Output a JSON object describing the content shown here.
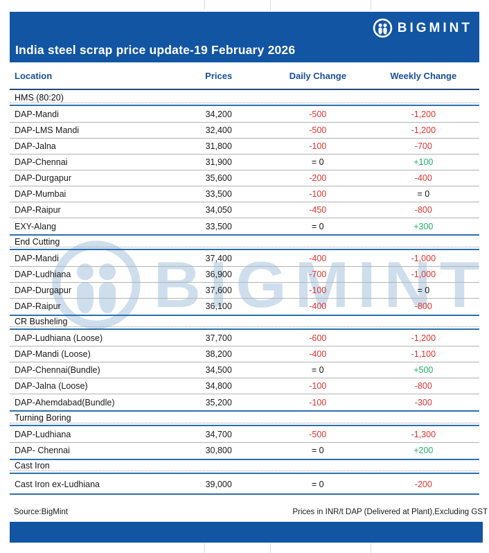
{
  "header": {
    "title": "India steel scrap price update-19 February 2026",
    "brand": "BIGMINT"
  },
  "columns": {
    "location": "Location",
    "prices": "Prices",
    "daily": "Daily Change",
    "weekly": "Weekly Change"
  },
  "table": {
    "sections": [
      {
        "name": "HMS (80:20)",
        "rows": [
          {
            "location": "DAP-Mandi",
            "price": "34,200",
            "daily": "-500",
            "weekly": "-1,200"
          },
          {
            "location": "DAP-LMS Mandi",
            "price": "32,400",
            "daily": "-500",
            "weekly": "-1,200"
          },
          {
            "location": "DAP-Jalna",
            "price": "31,800",
            "daily": "-100",
            "weekly": "-700"
          },
          {
            "location": "DAP-Chennai",
            "price": "31,900",
            "daily": "= 0",
            "weekly": "+100"
          },
          {
            "location": "DAP-Durgapur",
            "price": "35,600",
            "daily": "-200",
            "weekly": "-400"
          },
          {
            "location": "DAP-Mumbai",
            "price": "33,500",
            "daily": "-100",
            "weekly": "= 0"
          },
          {
            "location": "DAP-Raipur",
            "price": "34,050",
            "daily": "-450",
            "weekly": "-800"
          },
          {
            "location": "EXY-Alang",
            "price": "33,500",
            "daily": "= 0",
            "weekly": "+300"
          }
        ]
      },
      {
        "name": "End Cutting",
        "rows": [
          {
            "location": "DAP-Mandi",
            "price": "37,400",
            "daily": "-400",
            "weekly": "-1,000"
          },
          {
            "location": "DAP-Ludhiana",
            "price": "36,900",
            "daily": "-700",
            "weekly": "-1,000"
          },
          {
            "location": "DAP-Durgapur",
            "price": "37,600",
            "daily": "-100",
            "weekly": "= 0"
          },
          {
            "location": "DAP-Raipur",
            "price": "36,100",
            "daily": "-400",
            "weekly": "-800"
          }
        ]
      },
      {
        "name": "CR Busheling",
        "rows": [
          {
            "location": "DAP-Ludhiana (Loose)",
            "price": "37,700",
            "daily": "-600",
            "weekly": "-1,200"
          },
          {
            "location": "DAP-Mandi (Loose)",
            "price": "38,200",
            "daily": "-400",
            "weekly": "-1,100"
          },
          {
            "location": "DAP-Chennai(Bundle)",
            "price": "34,500",
            "daily": "= 0",
            "weekly": "+500"
          },
          {
            "location": "DAP-Jalna (Loose)",
            "price": "34,800",
            "daily": "-100",
            "weekly": "-800"
          },
          {
            "location": "DAP-Ahemdabad(Bundle)",
            "price": "35,200",
            "daily": "-100",
            "weekly": "-300"
          }
        ]
      },
      {
        "name": "Turning Boring",
        "rows": [
          {
            "location": "DAP-Ludhiana",
            "price": "34,700",
            "daily": "-500",
            "weekly": "-1,300"
          },
          {
            "location": "DAP- Chennai",
            "price": "30,800",
            "daily": "= 0",
            "weekly": "+200"
          }
        ]
      },
      {
        "name": "Cast Iron",
        "rows": [
          {
            "location": "Cast Iron ex-Ludhiana",
            "price": "39,000",
            "daily": "= 0",
            "weekly": "-200"
          }
        ]
      }
    ]
  },
  "footer": {
    "source": "Source:BigMint",
    "note": "Prices in INR/t DAP (Delivered at Plant),Excluding GST"
  },
  "watermark": {
    "text": "BIGMINT"
  },
  "colors": {
    "bar_blue": "#1155a3",
    "section_line_blue": "#2c6fad",
    "header_underline_navy": "#27456e",
    "column_header_text": "#1a4f9e",
    "negative_red": "#e0342f",
    "positive_green": "#1fae6a",
    "watermark_blue": "#9fbedd"
  }
}
